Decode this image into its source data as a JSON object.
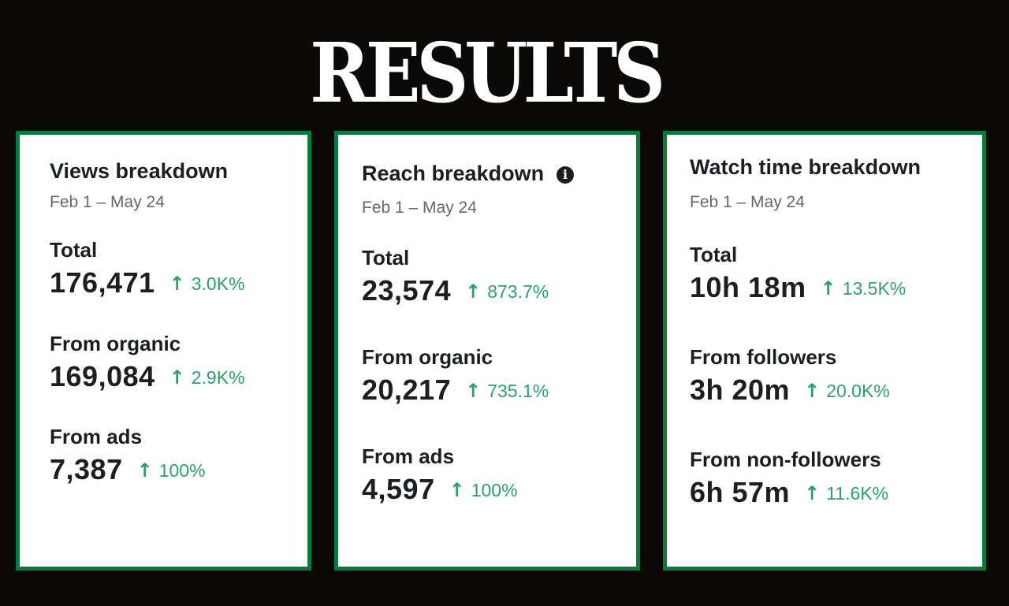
{
  "heading": "RESULTS",
  "colors": {
    "background": "#0a0908",
    "card_border": "#0a7a3c",
    "increase": "#2e9e6a",
    "text": "#1c1e21",
    "muted": "#65676b"
  },
  "cards": [
    {
      "title": "Views breakdown",
      "date_range": "Feb 1 – May 24",
      "metrics": [
        {
          "label": "Total",
          "value": "176,471",
          "change": "3.0K%",
          "trend_icon": "arrow-up-icon"
        },
        {
          "label": "From organic",
          "value": "169,084",
          "change": "2.9K%",
          "trend_icon": "arrow-up-icon"
        },
        {
          "label": "From ads",
          "value": "7,387",
          "change": "100%",
          "trend_icon": "arrow-up-icon"
        }
      ]
    },
    {
      "title": "Reach breakdown",
      "title_icon": "info-icon",
      "date_range": "Feb 1 – May 24",
      "metrics": [
        {
          "label": "Total",
          "value": "23,574",
          "change": "873.7%",
          "trend_icon": "arrow-up-icon"
        },
        {
          "label": "From organic",
          "value": "20,217",
          "change": "735.1%",
          "trend_icon": "arrow-up-icon"
        },
        {
          "label": "From ads",
          "value": "4,597",
          "change": "100%",
          "trend_icon": "arrow-up-icon"
        }
      ]
    },
    {
      "title": "Watch time breakdown",
      "date_range": "Feb 1 – May 24",
      "metrics": [
        {
          "label": "Total",
          "value": "10h 18m",
          "change": "13.5K%",
          "trend_icon": "arrow-up-icon"
        },
        {
          "label": "From followers",
          "value": "3h 20m",
          "change": "20.0K%",
          "trend_icon": "arrow-up-icon"
        },
        {
          "label": "From non-followers",
          "value": "6h 57m",
          "change": "11.6K%",
          "trend_icon": "arrow-up-icon"
        }
      ]
    }
  ]
}
